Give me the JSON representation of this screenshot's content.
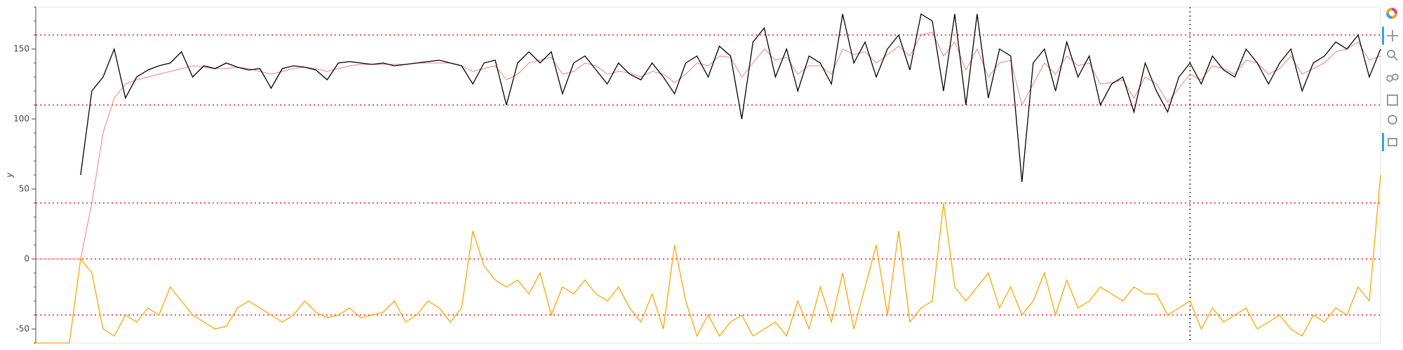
{
  "chart_data": {
    "type": "line",
    "ylabel": "y",
    "ylim": [
      -60,
      180
    ],
    "yticks": [
      -50,
      0,
      50,
      100,
      150
    ],
    "hlines": [
      160,
      110,
      40,
      0,
      -40
    ],
    "hline_color": "#e8231e",
    "vline": 103,
    "vline_color": "#333333",
    "series": [
      {
        "color": "#000000",
        "values": [
          null,
          null,
          null,
          null,
          60,
          120,
          130,
          150,
          115,
          130,
          135,
          138,
          140,
          148,
          130,
          138,
          136,
          140,
          137,
          135,
          136,
          122,
          136,
          138,
          137,
          135,
          128,
          140,
          141,
          140,
          139,
          140,
          138,
          139,
          140,
          141,
          142,
          140,
          138,
          125,
          140,
          142,
          110,
          140,
          148,
          140,
          148,
          118,
          140,
          145,
          135,
          125,
          140,
          132,
          128,
          140,
          130,
          118,
          140,
          145,
          130,
          152,
          145,
          100,
          155,
          165,
          130,
          150,
          120,
          145,
          140,
          125,
          175,
          140,
          155,
          130,
          150,
          160,
          135,
          175,
          170,
          120,
          175,
          110,
          175,
          115,
          150,
          145,
          55,
          140,
          150,
          120,
          155,
          130,
          145,
          110,
          125,
          130,
          105,
          140,
          120,
          105,
          130,
          140,
          125,
          145,
          135,
          130,
          150,
          140,
          125,
          140,
          150,
          120,
          140,
          145,
          155,
          150,
          160,
          130,
          150
        ]
      },
      {
        "color": "#f08080",
        "values": [
          0,
          0,
          0,
          0,
          0,
          40,
          90,
          115,
          125,
          128,
          130,
          132,
          134,
          136,
          138,
          137,
          136,
          136,
          137,
          136,
          134,
          132,
          134,
          136,
          137,
          136,
          134,
          136,
          138,
          139,
          139,
          139,
          139,
          139,
          140,
          140,
          140,
          140,
          138,
          134,
          136,
          138,
          128,
          132,
          140,
          142,
          144,
          132,
          134,
          140,
          138,
          132,
          134,
          133,
          130,
          134,
          132,
          126,
          132,
          140,
          138,
          145,
          144,
          130,
          140,
          150,
          142,
          144,
          132,
          138,
          138,
          132,
          150,
          146,
          148,
          140,
          146,
          152,
          145,
          160,
          162,
          145,
          155,
          135,
          150,
          130,
          140,
          142,
          110,
          125,
          140,
          132,
          145,
          138,
          140,
          125,
          126,
          128,
          115,
          130,
          125,
          112,
          122,
          132,
          128,
          138,
          136,
          132,
          142,
          140,
          132,
          136,
          145,
          132,
          136,
          140,
          148,
          150,
          155,
          142,
          145
        ]
      },
      {
        "color": "#ffa500",
        "values": [
          -60,
          -60,
          -60,
          -60,
          0,
          -10,
          -50,
          -55,
          -40,
          -45,
          -35,
          -40,
          -20,
          -30,
          -40,
          -45,
          -50,
          -48,
          -35,
          -30,
          -35,
          -40,
          -45,
          -40,
          -30,
          -38,
          -42,
          -40,
          -35,
          -42,
          -40,
          -38,
          -30,
          -45,
          -40,
          -30,
          -35,
          -45,
          -35,
          20,
          -5,
          -15,
          -20,
          -15,
          -25,
          -10,
          -40,
          -20,
          -25,
          -15,
          -25,
          -30,
          -20,
          -35,
          -45,
          -25,
          -50,
          10,
          -30,
          -55,
          -40,
          -55,
          -45,
          -40,
          -55,
          -50,
          -45,
          -55,
          -30,
          -50,
          -20,
          -45,
          -10,
          -50,
          -20,
          10,
          -40,
          20,
          -45,
          -35,
          -30,
          40,
          -20,
          -30,
          -20,
          -10,
          -35,
          -20,
          -40,
          -30,
          -10,
          -40,
          -15,
          -35,
          -30,
          -20,
          -25,
          -30,
          -20,
          -25,
          -25,
          -40,
          -35,
          -30,
          -50,
          -35,
          -45,
          -40,
          -35,
          -50,
          -45,
          -40,
          -50,
          -55,
          -40,
          -45,
          -35,
          -40,
          -20,
          -30,
          60
        ]
      }
    ]
  }
}
